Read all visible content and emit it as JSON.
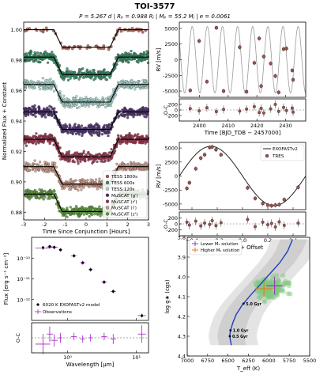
{
  "figure": {
    "title": "TOI-3577",
    "subtitle": "P = 5.267 d | Rₚ = 0.988 Rⱼ | Mₚ = 55.2 Mⱼ | e = 0.0061"
  },
  "chart_data": [
    {
      "id": "transit",
      "type": "scatter",
      "xlabel": "Time Since Conjunction [Hours]",
      "ylabel": "Normalized Flux + Constant",
      "xlim": [
        -3,
        3
      ],
      "ylim": [
        0.875,
        1.005
      ],
      "xticks": [
        -3,
        -2,
        -1,
        0,
        1,
        2,
        3
      ],
      "yticks": [
        0.88,
        0.9,
        0.92,
        0.94,
        0.96,
        0.98,
        1.0
      ],
      "ytick_labels": [
        "0.88",
        "0.90",
        "0.92",
        "0.94",
        "0.96",
        "0.98",
        "1.00"
      ],
      "transit": {
        "t1": 1.55,
        "t2": 1.15,
        "depth": 0.0115
      },
      "series": [
        {
          "name": "TESS 1800s",
          "offset": 1.0,
          "color": "#a85a4a",
          "dense": false
        },
        {
          "name": "TESS 600s",
          "offset": 0.982,
          "color": "#2e8b62",
          "dense": true
        },
        {
          "name": "TESS 120s",
          "offset": 0.964,
          "color": "#a8d8d0",
          "dense": true
        },
        {
          "name": "MuSCAT (g')",
          "offset": 0.946,
          "color": "#4b2f6e",
          "dense": true
        },
        {
          "name": "MuSCAT (r')",
          "offset": 0.928,
          "color": "#9a2f4a",
          "dense": true
        },
        {
          "name": "MuSCAT (i')",
          "offset": 0.91,
          "color": "#cf9a86",
          "dense": true
        },
        {
          "name": "MuSCAT (z')",
          "offset": 0.892,
          "color": "#5a9a3a",
          "dense": true
        }
      ]
    },
    {
      "id": "rv_time",
      "type": "scatter",
      "xlabel": "Time [BJD_TDB − 2457000]",
      "ylabel": "RV [m/s]",
      "xlim": [
        2393,
        2437
      ],
      "ylim": [
        -6000,
        6000
      ],
      "xticks": [
        2400,
        2410,
        2420,
        2430
      ],
      "yticks": [
        -5000,
        -2500,
        0,
        2500,
        5000
      ],
      "period": 5.267,
      "K": 5300,
      "t0": 2390.9,
      "points": [
        {
          "x": 2396.8,
          "y": -4900
        },
        {
          "x": 2399.9,
          "y": 3000
        },
        {
          "x": 2402.6,
          "y": -3500
        },
        {
          "x": 2405.9,
          "y": 5100
        },
        {
          "x": 2408.4,
          "y": -5000
        },
        {
          "x": 2414.0,
          "y": 2000
        },
        {
          "x": 2416.4,
          "y": -5100
        },
        {
          "x": 2419.1,
          "y": -500
        },
        {
          "x": 2420.8,
          "y": 3400
        },
        {
          "x": 2421.5,
          "y": -4200
        },
        {
          "x": 2422.4,
          "y": 500
        },
        {
          "x": 2424.8,
          "y": -600
        },
        {
          "x": 2426.4,
          "y": -2600
        },
        {
          "x": 2427.6,
          "y": -5200
        },
        {
          "x": 2429.3,
          "y": 1700
        },
        {
          "x": 2430.3,
          "y": 1800
        },
        {
          "x": 2432.3,
          "y": -1700
        },
        {
          "x": 2432.6,
          "y": -3200
        }
      ],
      "residuals": {
        "ylabel": "O-C",
        "ylim": [
          -400,
          400
        ],
        "yticks": [
          -200,
          0,
          200
        ],
        "points": [
          {
            "x": 2396.8,
            "y": 50
          },
          {
            "x": 2399.9,
            "y": -30
          },
          {
            "x": 2402.6,
            "y": 80
          },
          {
            "x": 2405.9,
            "y": -60
          },
          {
            "x": 2408.4,
            "y": 20
          },
          {
            "x": 2414.0,
            "y": -40
          },
          {
            "x": 2416.4,
            "y": 30
          },
          {
            "x": 2419.1,
            "y": 120
          },
          {
            "x": 2420.8,
            "y": -90
          },
          {
            "x": 2421.5,
            "y": 60
          },
          {
            "x": 2422.4,
            "y": -110
          },
          {
            "x": 2424.8,
            "y": 40
          },
          {
            "x": 2426.4,
            "y": 200
          },
          {
            "x": 2427.6,
            "y": -50
          },
          {
            "x": 2429.3,
            "y": 90
          },
          {
            "x": 2430.3,
            "y": -20
          },
          {
            "x": 2432.3,
            "y": 70
          },
          {
            "x": 2432.6,
            "y": -80
          }
        ]
      }
    },
    {
      "id": "rv_phase",
      "type": "scatter",
      "xlabel": "Phase + Offset",
      "ylabel": "RV [m/s]",
      "xlim": [
        -0.5,
        0.5
      ],
      "ylim": [
        -6000,
        6000
      ],
      "xticks": [
        -0.4,
        -0.2,
        0.0,
        0.2,
        0.4
      ],
      "xtick_labels": [
        "−0.4",
        "−0.2",
        "0.0",
        "0.2",
        "0.4"
      ],
      "yticks": [
        -5000,
        -2500,
        0,
        2500,
        5000
      ],
      "K": 5300,
      "legend": [
        "EXOFASTv2",
        "TRES"
      ],
      "points": [
        {
          "x": -0.44,
          "y": -2200
        },
        {
          "x": -0.42,
          "y": -1200
        },
        {
          "x": -0.37,
          "y": 1300
        },
        {
          "x": -0.33,
          "y": 3200
        },
        {
          "x": -0.3,
          "y": 3800
        },
        {
          "x": -0.26,
          "y": 5100
        },
        {
          "x": -0.24,
          "y": 5200
        },
        {
          "x": -0.21,
          "y": 4700
        },
        {
          "x": -0.17,
          "y": 3800
        },
        {
          "x": 0.04,
          "y": -2100
        },
        {
          "x": 0.1,
          "y": -4000
        },
        {
          "x": 0.16,
          "y": -4900
        },
        {
          "x": 0.2,
          "y": -5200
        },
        {
          "x": 0.23,
          "y": -5300
        },
        {
          "x": 0.26,
          "y": -5200
        },
        {
          "x": 0.29,
          "y": -5100
        },
        {
          "x": 0.33,
          "y": -4200
        },
        {
          "x": 0.44,
          "y": -2000
        }
      ],
      "residuals": {
        "ylabel": "O-C",
        "ylim": [
          -400,
          400
        ],
        "yticks": [
          -200,
          0,
          200
        ],
        "points": [
          {
            "x": -0.44,
            "y": 60
          },
          {
            "x": -0.42,
            "y": -40
          },
          {
            "x": -0.37,
            "y": 90
          },
          {
            "x": -0.33,
            "y": -70
          },
          {
            "x": -0.3,
            "y": 30
          },
          {
            "x": -0.26,
            "y": -20
          },
          {
            "x": -0.24,
            "y": 110
          },
          {
            "x": -0.21,
            "y": -60
          },
          {
            "x": -0.17,
            "y": 40
          },
          {
            "x": 0.04,
            "y": 150
          },
          {
            "x": 0.1,
            "y": -90
          },
          {
            "x": 0.16,
            "y": 60
          },
          {
            "x": 0.2,
            "y": -30
          },
          {
            "x": 0.23,
            "y": 20
          },
          {
            "x": 0.26,
            "y": -100
          },
          {
            "x": 0.29,
            "y": 70
          },
          {
            "x": 0.33,
            "y": -50
          },
          {
            "x": 0.44,
            "y": 30
          }
        ]
      }
    },
    {
      "id": "sed",
      "type": "scatter",
      "xlabel": "Wavelength [μm]",
      "ylabel": "Flux [erg s⁻¹ cm⁻²]",
      "xscale": "log",
      "yscale": "log",
      "xlim": [
        0.3,
        15
      ],
      "ylim": [
        1e-13,
        1e-09
      ],
      "xticks": [
        1,
        10
      ],
      "xtick_labels": [
        "10⁰",
        "10¹"
      ],
      "yticks": [
        1e-12,
        1e-11,
        1e-10
      ],
      "ytick_labels": [
        "10⁻¹²",
        "10⁻¹¹",
        "10⁻¹⁰"
      ],
      "legend": [
        "6020 K EXOFASTv2 model",
        "Observations"
      ],
      "model_points": [
        {
          "x": 0.44,
          "y": 3.2e-10
        },
        {
          "x": 0.55,
          "y": 3.6e-10
        },
        {
          "x": 0.64,
          "y": 3.3e-10
        },
        {
          "x": 0.79,
          "y": 2.5e-10
        },
        {
          "x": 1.24,
          "y": 1.3e-10
        },
        {
          "x": 1.66,
          "y": 6e-11
        },
        {
          "x": 2.16,
          "y": 2.8e-11
        },
        {
          "x": 3.4,
          "y": 7e-12
        },
        {
          "x": 4.6,
          "y": 2.5e-12
        },
        {
          "x": 12,
          "y": 1.7e-13
        }
      ],
      "observations": [
        {
          "x": 0.44,
          "y": 3.1e-10,
          "xerr_lo": 0.1,
          "xerr_hi": 0.12
        },
        {
          "x": 0.55,
          "y": 3.5e-10,
          "xerr_lo": 0.05,
          "xerr_hi": 0.06
        },
        {
          "x": 0.64,
          "y": 3.3e-10,
          "xerr_lo": 0.07,
          "xerr_hi": 0.08
        },
        {
          "x": 0.79,
          "y": 2.5e-10,
          "xerr_lo": 0.05,
          "xerr_hi": 0.05
        },
        {
          "x": 1.24,
          "y": 1.3e-10,
          "xerr_lo": 0.12,
          "xerr_hi": 0.12
        },
        {
          "x": 1.66,
          "y": 6e-11,
          "xerr_lo": 0.14,
          "xerr_hi": 0.14
        },
        {
          "x": 2.16,
          "y": 2.8e-11,
          "xerr_lo": 0.15,
          "xerr_hi": 0.16
        },
        {
          "x": 3.4,
          "y": 7e-12,
          "xerr_lo": 0.3,
          "xerr_hi": 0.35
        },
        {
          "x": 4.6,
          "y": 2.5e-12,
          "xerr_lo": 0.4,
          "xerr_hi": 0.45
        },
        {
          "x": 12,
          "y": 1.7e-13,
          "xerr_lo": 1.5,
          "xerr_hi": 1.7
        }
      ],
      "residuals": {
        "ylabel": "O-C",
        "ylim": [
          -0.12,
          0.12
        ],
        "points": [
          {
            "x": 0.44,
            "y": -0.05,
            "xerr_lo": 0.1,
            "xerr_hi": 0.12,
            "yerr": 0.08
          },
          {
            "x": 0.55,
            "y": 0.03,
            "xerr_lo": 0.05,
            "xerr_hi": 0.06,
            "yerr": 0.06
          },
          {
            "x": 0.64,
            "y": -0.02,
            "xerr_lo": 0.07,
            "xerr_hi": 0.08,
            "yerr": 0.05
          },
          {
            "x": 0.79,
            "y": 0.0,
            "xerr_lo": 0.05,
            "xerr_hi": 0.05,
            "yerr": 0.04
          },
          {
            "x": 1.24,
            "y": 0.01,
            "xerr_lo": 0.12,
            "xerr_hi": 0.12,
            "yerr": 0.03
          },
          {
            "x": 1.66,
            "y": -0.01,
            "xerr_lo": 0.14,
            "xerr_hi": 0.14,
            "yerr": 0.03
          },
          {
            "x": 2.16,
            "y": 0.0,
            "xerr_lo": 0.15,
            "xerr_hi": 0.16,
            "yerr": 0.03
          },
          {
            "x": 3.4,
            "y": 0.01,
            "xerr_lo": 0.3,
            "xerr_hi": 0.35,
            "yerr": 0.03
          },
          {
            "x": 4.6,
            "y": -0.01,
            "xerr_lo": 0.4,
            "xerr_hi": 0.45,
            "yerr": 0.04
          },
          {
            "x": 12,
            "y": 0.03,
            "xerr_lo": 1.5,
            "xerr_hi": 1.7,
            "yerr": 0.07
          }
        ]
      }
    },
    {
      "id": "hr",
      "type": "scatter",
      "xlabel": "T_eff (K)",
      "ylabel": "log g★ (cgs)",
      "xlim": [
        7000,
        5500
      ],
      "ylim": [
        4.4,
        3.8
      ],
      "xticks": [
        7000,
        6750,
        6500,
        6250,
        6000,
        5750,
        5500
      ],
      "yticks": [
        3.8,
        3.9,
        4.0,
        4.1,
        4.2,
        4.3,
        4.4
      ],
      "ytick_labels": [
        "3.8",
        "3.9",
        "4.0",
        "4.1",
        "4.2",
        "4.3",
        "4.4"
      ],
      "legend": [
        "Lower Mₛ solution",
        "Higher Mₛ solution"
      ],
      "solutions": [
        {
          "name": "Lower Mₛ solution",
          "teff": 5930,
          "logg": 4.045,
          "teff_err": 100,
          "logg_err": 0.045,
          "color": "#8e44ad"
        },
        {
          "name": "Higher Mₛ solution",
          "teff": 6060,
          "logg": 4.06,
          "teff_err": 110,
          "logg_err": 0.04,
          "color": "#e67e22"
        }
      ],
      "track": [
        {
          "x": 6460,
          "y": 4.345
        },
        {
          "x": 6480,
          "y": 4.3
        },
        {
          "x": 6470,
          "y": 4.27
        },
        {
          "x": 6440,
          "y": 4.23
        },
        {
          "x": 6400,
          "y": 4.19
        },
        {
          "x": 6330,
          "y": 4.145
        },
        {
          "x": 6230,
          "y": 4.095
        },
        {
          "x": 6120,
          "y": 4.045
        },
        {
          "x": 6000,
          "y": 3.99
        },
        {
          "x": 5870,
          "y": 3.93
        },
        {
          "x": 5770,
          "y": 3.87
        },
        {
          "x": 5710,
          "y": 3.81
        }
      ],
      "track_color": "#1f3fbf",
      "age_marks": [
        {
          "label": "5.0 Gyr",
          "x": 6310,
          "y": 4.135
        },
        {
          "label": "1.0 Gyr",
          "x": 6470,
          "y": 4.27
        },
        {
          "label": "0.5 Gyr",
          "x": 6478,
          "y": 4.3
        }
      ]
    }
  ]
}
